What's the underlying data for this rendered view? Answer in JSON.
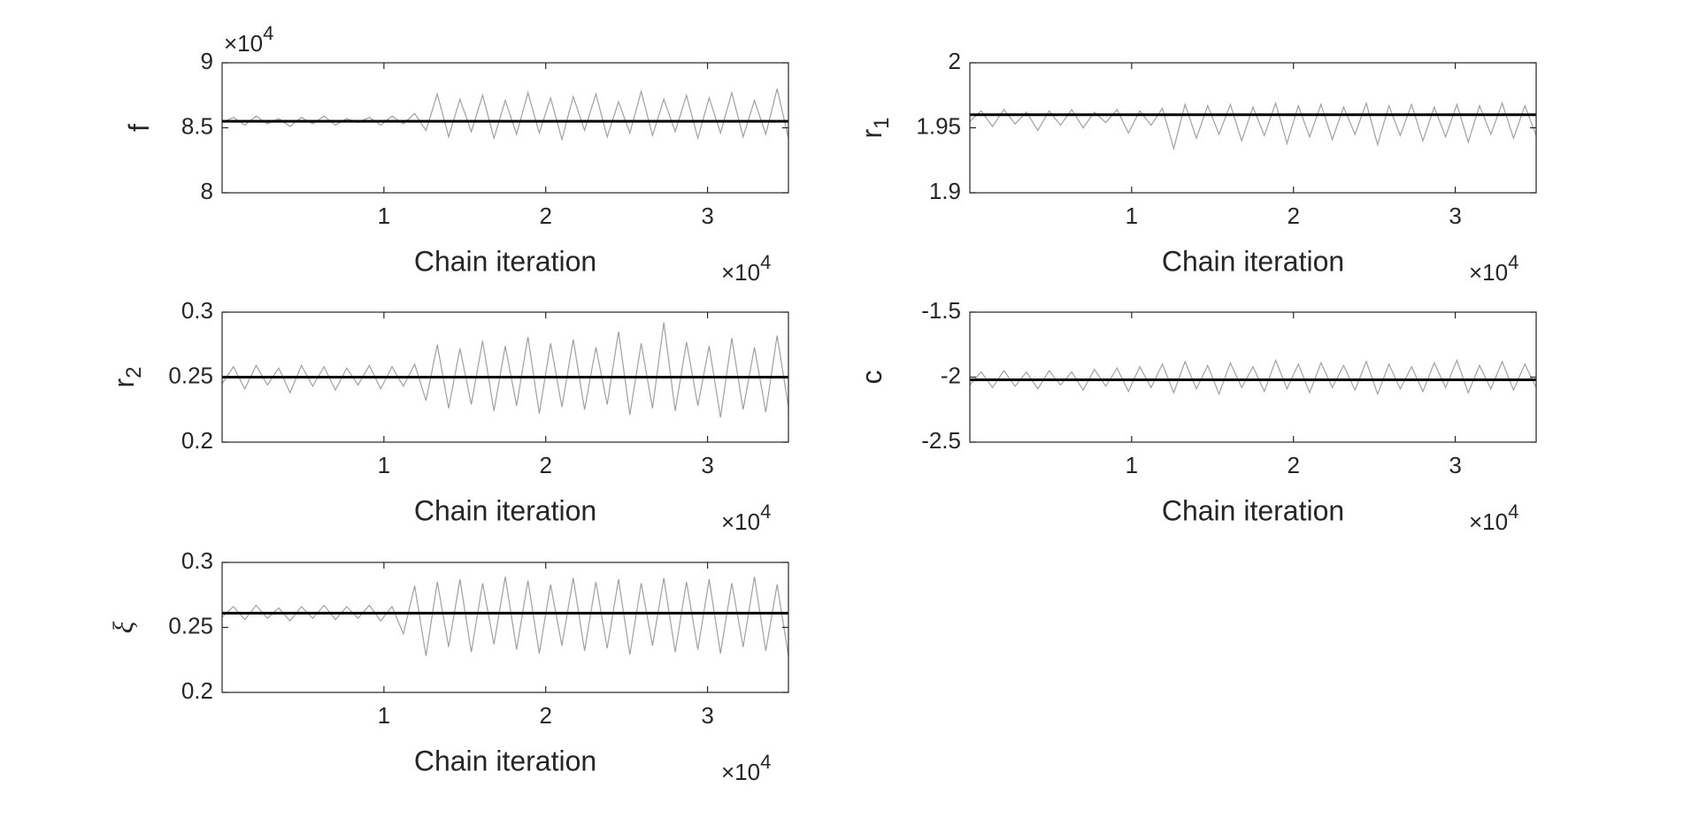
{
  "chart_data": [
    {
      "type": "line",
      "xlabel": "Chain iteration",
      "ylabel": {
        "text": "f"
      },
      "x": [
        0,
        700,
        1400,
        2100,
        2800,
        3500,
        4200,
        4900,
        5600,
        6300,
        7000,
        7700,
        8400,
        9100,
        9800,
        10500,
        11200,
        11900,
        12600,
        13300,
        14000,
        14700,
        15400,
        16100,
        16800,
        17500,
        18200,
        18900,
        19600,
        20300,
        21000,
        21700,
        22400,
        23100,
        23800,
        24500,
        25200,
        25900,
        26600,
        27300,
        28000,
        28700,
        29400,
        30100,
        30800,
        31500,
        32200,
        32900,
        33600,
        34300,
        35000
      ],
      "series": [
        {
          "color": "#a0a0a0",
          "values": [
            85400,
            85800,
            85200,
            85900,
            85300,
            85700,
            85100,
            85800,
            85300,
            85900,
            85200,
            85700,
            85400,
            85800,
            85200,
            85900,
            85300,
            86100,
            84800,
            87600,
            84300,
            87200,
            84700,
            87500,
            84200,
            87100,
            84500,
            87700,
            84600,
            87300,
            84100,
            87400,
            84800,
            87600,
            84300,
            87000,
            84600,
            87800,
            84400,
            87200,
            84700,
            87500,
            84200,
            87300,
            84600,
            87700,
            84300,
            87100,
            84500,
            88000,
            84200
          ]
        }
      ],
      "reference_line": {
        "value": 85500,
        "color": "#000000"
      },
      "xlim": [
        0,
        35000
      ],
      "xticks": [
        {
          "value": 10000,
          "label": "1"
        },
        {
          "value": 20000,
          "label": "2"
        },
        {
          "value": 30000,
          "label": "3"
        }
      ],
      "x_exponent": {
        "base": "×10",
        "power": "4"
      },
      "ylim": [
        80000,
        90000
      ],
      "yticks": [
        {
          "value": 80000,
          "label": "8"
        },
        {
          "value": 85000,
          "label": "8.5"
        },
        {
          "value": 90000,
          "label": "9"
        }
      ],
      "y_exponent": {
        "base": "×10",
        "power": "4"
      }
    },
    {
      "type": "line",
      "xlabel": "Chain iteration",
      "ylabel": {
        "text": "r",
        "subscript": "1"
      },
      "x": [
        0,
        700,
        1400,
        2100,
        2800,
        3500,
        4200,
        4900,
        5600,
        6300,
        7000,
        7700,
        8400,
        9100,
        9800,
        10500,
        11200,
        11900,
        12600,
        13300,
        14000,
        14700,
        15400,
        16100,
        16800,
        17500,
        18200,
        18900,
        19600,
        20300,
        21000,
        21700,
        22400,
        23100,
        23800,
        24500,
        25200,
        25900,
        26600,
        27300,
        28000,
        28700,
        29400,
        30100,
        30800,
        31500,
        32200,
        32900,
        33600,
        34300,
        35000
      ],
      "series": [
        {
          "color": "#a0a0a0",
          "values": [
            1.955,
            1.963,
            1.951,
            1.964,
            1.953,
            1.962,
            1.948,
            1.963,
            1.952,
            1.964,
            1.95,
            1.962,
            1.954,
            1.964,
            1.946,
            1.963,
            1.952,
            1.965,
            1.934,
            1.968,
            1.942,
            1.967,
            1.945,
            1.968,
            1.94,
            1.966,
            1.944,
            1.969,
            1.938,
            1.967,
            1.943,
            1.968,
            1.941,
            1.966,
            1.945,
            1.969,
            1.937,
            1.967,
            1.944,
            1.968,
            1.94,
            1.966,
            1.943,
            1.968,
            1.939,
            1.967,
            1.945,
            1.969,
            1.942,
            1.967,
            1.944
          ]
        }
      ],
      "reference_line": {
        "value": 1.96,
        "color": "#000000"
      },
      "xlim": [
        0,
        35000
      ],
      "xticks": [
        {
          "value": 10000,
          "label": "1"
        },
        {
          "value": 20000,
          "label": "2"
        },
        {
          "value": 30000,
          "label": "3"
        }
      ],
      "x_exponent": {
        "base": "×10",
        "power": "4"
      },
      "ylim": [
        1.9,
        2
      ],
      "yticks": [
        1.9,
        1.95,
        2
      ]
    },
    {
      "type": "line",
      "xlabel": "Chain iteration",
      "ylabel": {
        "text": "r",
        "subscript": "2"
      },
      "x": [
        0,
        700,
        1400,
        2100,
        2800,
        3500,
        4200,
        4900,
        5600,
        6300,
        7000,
        7700,
        8400,
        9100,
        9800,
        10500,
        11200,
        11900,
        12600,
        13300,
        14000,
        14700,
        15400,
        16100,
        16800,
        17500,
        18200,
        18900,
        19600,
        20300,
        21000,
        21700,
        22400,
        23100,
        23800,
        24500,
        25200,
        25900,
        26600,
        27300,
        28000,
        28700,
        29400,
        30100,
        30800,
        31500,
        32200,
        32900,
        33600,
        34300,
        35000
      ],
      "series": [
        {
          "color": "#a0a0a0",
          "values": [
            0.245,
            0.258,
            0.241,
            0.259,
            0.244,
            0.257,
            0.238,
            0.259,
            0.243,
            0.258,
            0.24,
            0.257,
            0.244,
            0.259,
            0.241,
            0.258,
            0.243,
            0.26,
            0.232,
            0.275,
            0.226,
            0.272,
            0.229,
            0.278,
            0.224,
            0.274,
            0.228,
            0.281,
            0.222,
            0.276,
            0.227,
            0.279,
            0.225,
            0.273,
            0.229,
            0.285,
            0.221,
            0.276,
            0.226,
            0.292,
            0.224,
            0.277,
            0.228,
            0.274,
            0.219,
            0.28,
            0.225,
            0.273,
            0.223,
            0.282,
            0.227
          ]
        }
      ],
      "reference_line": {
        "value": 0.25,
        "color": "#000000"
      },
      "xlim": [
        0,
        35000
      ],
      "xticks": [
        {
          "value": 10000,
          "label": "1"
        },
        {
          "value": 20000,
          "label": "2"
        },
        {
          "value": 30000,
          "label": "3"
        }
      ],
      "x_exponent": {
        "base": "×10",
        "power": "4"
      },
      "ylim": [
        0.2,
        0.3
      ],
      "yticks": [
        0.2,
        0.25,
        0.3
      ]
    },
    {
      "type": "line",
      "xlabel": "Chain iteration",
      "ylabel": {
        "text": "c"
      },
      "x": [
        0,
        700,
        1400,
        2100,
        2800,
        3500,
        4200,
        4900,
        5600,
        6300,
        7000,
        7700,
        8400,
        9100,
        9800,
        10500,
        11200,
        11900,
        12600,
        13300,
        14000,
        14700,
        15400,
        16100,
        16800,
        17500,
        18200,
        18900,
        19600,
        20300,
        21000,
        21700,
        22400,
        23100,
        23800,
        24500,
        25200,
        25900,
        26600,
        27300,
        28000,
        28700,
        29400,
        30100,
        30800,
        31500,
        32200,
        32900,
        33600,
        34300,
        35000
      ],
      "series": [
        {
          "color": "#a0a0a0",
          "values": [
            -2.06,
            -1.96,
            -2.08,
            -1.95,
            -2.07,
            -1.96,
            -2.09,
            -1.95,
            -2.06,
            -1.96,
            -2.1,
            -1.94,
            -2.07,
            -1.93,
            -2.11,
            -1.92,
            -2.08,
            -1.9,
            -2.12,
            -1.88,
            -2.09,
            -1.91,
            -2.13,
            -1.89,
            -2.08,
            -1.92,
            -2.11,
            -1.87,
            -2.09,
            -1.9,
            -2.12,
            -1.89,
            -2.08,
            -1.91,
            -2.1,
            -1.88,
            -2.13,
            -1.9,
            -2.09,
            -1.92,
            -2.11,
            -1.89,
            -2.08,
            -1.87,
            -2.12,
            -1.91,
            -2.09,
            -1.88,
            -2.1,
            -1.9,
            -2.08
          ]
        }
      ],
      "reference_line": {
        "value": -2.02,
        "color": "#000000"
      },
      "xlim": [
        0,
        35000
      ],
      "xticks": [
        {
          "value": 10000,
          "label": "1"
        },
        {
          "value": 20000,
          "label": "2"
        },
        {
          "value": 30000,
          "label": "3"
        }
      ],
      "x_exponent": {
        "base": "×10",
        "power": "4"
      },
      "ylim": [
        -2.5,
        -1.5
      ],
      "yticks": [
        -2.5,
        -2,
        -1.5
      ]
    },
    {
      "type": "line",
      "xlabel": "Chain iteration",
      "ylabel": {
        "text": "ξ"
      },
      "ylabel_italic": true,
      "x": [
        0,
        700,
        1400,
        2100,
        2800,
        3500,
        4200,
        4900,
        5600,
        6300,
        7000,
        7700,
        8400,
        9100,
        9800,
        10500,
        11200,
        11900,
        12600,
        13300,
        14000,
        14700,
        15400,
        16100,
        16800,
        17500,
        18200,
        18900,
        19600,
        20300,
        21000,
        21700,
        22400,
        23100,
        23800,
        24500,
        25200,
        25900,
        26600,
        27300,
        28000,
        28700,
        29400,
        30100,
        30800,
        31500,
        32200,
        32900,
        33600,
        34300,
        35000
      ],
      "series": [
        {
          "color": "#a0a0a0",
          "values": [
            0.258,
            0.266,
            0.256,
            0.267,
            0.257,
            0.265,
            0.255,
            0.266,
            0.257,
            0.267,
            0.256,
            0.266,
            0.257,
            0.267,
            0.255,
            0.266,
            0.245,
            0.282,
            0.228,
            0.285,
            0.235,
            0.287,
            0.231,
            0.284,
            0.237,
            0.289,
            0.233,
            0.286,
            0.23,
            0.283,
            0.236,
            0.288,
            0.232,
            0.285,
            0.234,
            0.287,
            0.229,
            0.284,
            0.236,
            0.288,
            0.231,
            0.285,
            0.233,
            0.287,
            0.23,
            0.284,
            0.235,
            0.289,
            0.232,
            0.283,
            0.228
          ]
        }
      ],
      "reference_line": {
        "value": 0.261,
        "color": "#000000"
      },
      "xlim": [
        0,
        35000
      ],
      "xticks": [
        {
          "value": 10000,
          "label": "1"
        },
        {
          "value": 20000,
          "label": "2"
        },
        {
          "value": 30000,
          "label": "3"
        }
      ],
      "x_exponent": {
        "base": "×10",
        "power": "4"
      },
      "ylim": [
        0.2,
        0.3
      ],
      "yticks": [
        0.2,
        0.25,
        0.3
      ]
    }
  ]
}
